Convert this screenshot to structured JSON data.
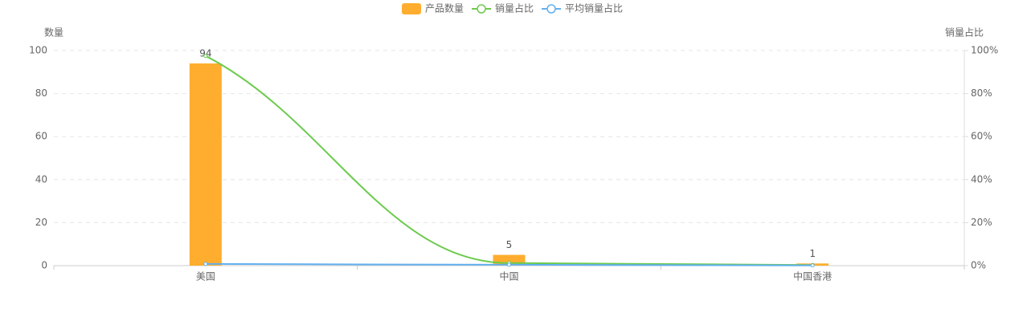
{
  "chart_data": {
    "type": "bar-line",
    "categories": [
      "美国",
      "中国",
      "中国香港"
    ],
    "series": [
      {
        "name": "产品数量",
        "type": "bar",
        "color": "#ffad2e",
        "values": [
          94,
          5,
          1
        ]
      },
      {
        "name": "销量占比",
        "type": "line",
        "axis": "y2",
        "color": "#6dcb4e",
        "values": [
          97.5,
          1.2,
          0.3
        ]
      },
      {
        "name": "平均销量占比",
        "type": "line",
        "axis": "y2",
        "color": "#62b0f0",
        "values": [
          0.8,
          0.4,
          0.1
        ]
      }
    ],
    "y_label": "数量",
    "y2_label": "销量占比",
    "ylim": [
      0,
      100
    ],
    "yticks": [
      0,
      20,
      40,
      60,
      80,
      100
    ],
    "y2lim": [
      0,
      100
    ],
    "y2ticks": [
      {
        "value": 0,
        "label": "0%"
      },
      {
        "value": 20,
        "label": "20%"
      },
      {
        "value": 40,
        "label": "40%"
      },
      {
        "value": 60,
        "label": "60%"
      },
      {
        "value": 80,
        "label": "80%"
      },
      {
        "value": 100,
        "label": "100%"
      }
    ],
    "grid": true
  }
}
